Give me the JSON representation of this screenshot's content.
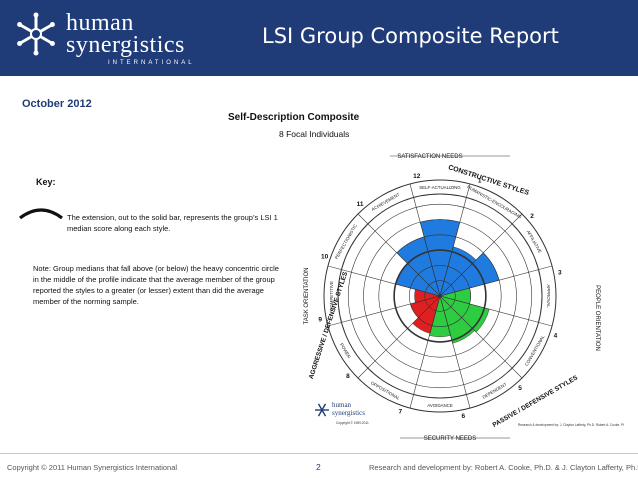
{
  "header": {
    "title": "LSI Group Composite Report",
    "logo": {
      "line1": "human",
      "line2": "synergistics",
      "line3": "INTERNATIONAL",
      "icon": "snowflake-logo-icon"
    },
    "colors": {
      "bar": "#1f3c78",
      "text": "#ffffff"
    }
  },
  "report": {
    "date": "October 2012",
    "subtitle": "Self-Description Composite",
    "participants": "8 Focal Individuals"
  },
  "key": {
    "label": "Key:",
    "text": "The extension, out to the solid bar, represents the group’s LSI 1 median score along each style.",
    "note": "Note: Group medians that fall above (or below) the heavy concentric circle in the middle of the profile indicate that the average member of the group reported the styles to a greater (or lesser) extent than did the average member of the norming sample."
  },
  "circumplex": {
    "segments": [
      {
        "num": "1",
        "name": "HUMANISTIC-ENCOURAGING",
        "color": "#1f7be0",
        "level": 0.5
      },
      {
        "num": "2",
        "name": "AFFILIATIVE",
        "color": "#1f7be0",
        "level": 0.6
      },
      {
        "num": "3",
        "name": "APPROVAL",
        "color": "#2ecc40",
        "level": 0.3
      },
      {
        "num": "4",
        "name": "CONVENTIONAL",
        "color": "#2ecc40",
        "level": 0.5
      },
      {
        "num": "5",
        "name": "DEPENDENT",
        "color": "#2ecc40",
        "level": 0.48
      },
      {
        "num": "6",
        "name": "AVOIDANCE",
        "color": "#2ecc40",
        "level": 0.4
      },
      {
        "num": "7",
        "name": "OPPOSITIONAL",
        "color": "#e02020",
        "level": 0.38
      },
      {
        "num": "8",
        "name": "POWER",
        "color": "#e02020",
        "level": 0.3
      },
      {
        "num": "9",
        "name": "COMPETITIVE",
        "color": "#e02020",
        "level": 0.25
      },
      {
        "num": "10",
        "name": "PERFECTIONISTIC",
        "color": "#1f7be0",
        "level": 0.45
      },
      {
        "num": "11",
        "name": "ACHIEVEMENT",
        "color": "#1f7be0",
        "level": 0.6
      },
      {
        "num": "12",
        "name": "SELF-ACTUALIZING",
        "color": "#1f7be0",
        "level": 0.75
      }
    ],
    "outer_labels": {
      "top": "SATISFACTION NEEDS",
      "bottom": "SECURITY NEEDS",
      "left": "TASK ORIENTATION",
      "right": "PEOPLE ORIENTATION",
      "constructive": "CONSTRUCTIVE STYLES",
      "passive": "PASSIVE / DEFENSIVE STYLES",
      "aggressive": "AGGRESSIVE / DEFENSIVE STYLES"
    },
    "mini_logo": {
      "line1": "human",
      "line2": "synergistics",
      "copyright": "Copyright © 1989-2011"
    },
    "credit": "Research & development by: J. Clayton Lafferty, Ph.D. Robert A. Cooke, Ph.D."
  },
  "footer": {
    "copyright": "Copyright © 2011 Human Synergistics International",
    "page": "2",
    "credit": "Research and development by: Robert A. Cooke, Ph.D. & J. Clayton Lafferty, Ph.D."
  }
}
